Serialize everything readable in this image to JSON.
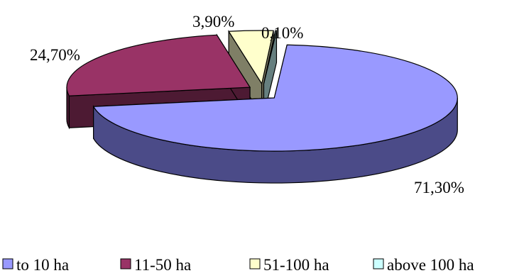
{
  "chart_data": {
    "type": "pie",
    "style": "3d-exploded",
    "categories": [
      "to 10 ha",
      "11-50 ha",
      "51-100 ha",
      "above 100 ha"
    ],
    "values": [
      71.3,
      24.7,
      3.9,
      0.1
    ],
    "data_labels": [
      "71,30%",
      "24,70%",
      "3,90%",
      "0,10%"
    ],
    "colors": [
      "#9999ff",
      "#993366",
      "#ffffcc",
      "#ccffff"
    ],
    "side_colors": [
      "#4b4b88",
      "#4d1a33",
      "#7f7f66",
      "#667f7f"
    ],
    "legend_position": "bottom"
  }
}
